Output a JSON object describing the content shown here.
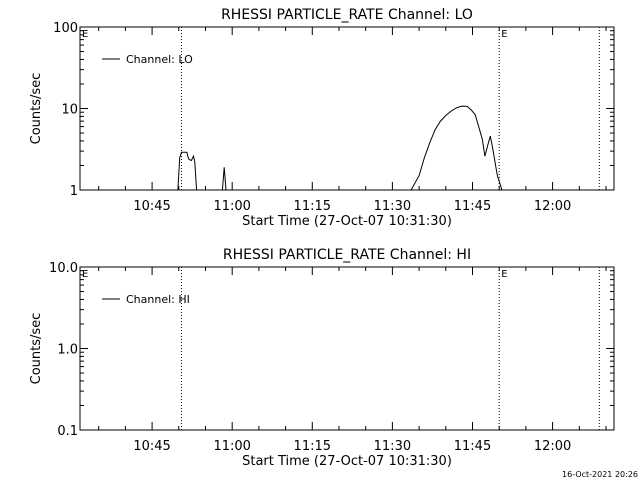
{
  "footer_timestamp": "16-Oct-2021 20:26",
  "chart_data": [
    {
      "type": "line",
      "title": "RHESSI PARTICLE_RATE Channel: LO",
      "xlabel": "Start Time (27-Oct-07 10:31:30)",
      "ylabel": "Counts/sec",
      "y_scale": "log",
      "ylim": [
        1,
        100
      ],
      "yticks": [
        "1",
        "10",
        "100"
      ],
      "xlim": [
        "10:31:30",
        "12:11:30"
      ],
      "xticks": [
        "10:45",
        "11:00",
        "11:15",
        "11:30",
        "11:45",
        "12:00"
      ],
      "event_lines": [
        "10:50:30",
        "11:50:00",
        "12:08:45"
      ],
      "event_markers": [
        {
          "text": "E",
          "at": "10:31:30"
        },
        {
          "text": "E",
          "at": "11:50:00"
        }
      ],
      "legend": {
        "position": "top-left",
        "entries": [
          "Channel: LO"
        ]
      },
      "series": [
        {
          "name": "Channel: LO",
          "points": [
            [
              "10:31:30",
              1.0
            ],
            [
              "10:49:50",
              1.0
            ],
            [
              "10:50:10",
              2.5
            ],
            [
              "10:50:30",
              2.9
            ],
            [
              "10:51:00",
              2.9
            ],
            [
              "10:51:30",
              2.9
            ],
            [
              "10:51:50",
              2.4
            ],
            [
              "10:52:20",
              2.3
            ],
            [
              "10:52:45",
              2.6
            ],
            [
              "10:53:00",
              2.2
            ],
            [
              "10:53:20",
              1.0
            ],
            [
              "10:58:10",
              1.0
            ],
            [
              "10:58:30",
              1.9
            ],
            [
              "10:58:50",
              1.0
            ],
            [
              "11:33:30",
              1.0
            ],
            [
              "11:35:00",
              1.5
            ],
            [
              "11:36:00",
              2.5
            ],
            [
              "11:37:00",
              3.8
            ],
            [
              "11:38:00",
              5.5
            ],
            [
              "11:39:00",
              7.0
            ],
            [
              "11:40:00",
              8.2
            ],
            [
              "11:41:00",
              9.3
            ],
            [
              "11:42:00",
              10.2
            ],
            [
              "11:43:00",
              10.7
            ],
            [
              "11:44:00",
              10.6
            ],
            [
              "11:44:45",
              9.6
            ],
            [
              "11:45:30",
              8.4
            ],
            [
              "11:46:10",
              6.0
            ],
            [
              "11:46:50",
              4.2
            ],
            [
              "11:47:20",
              2.6
            ],
            [
              "11:47:50",
              3.5
            ],
            [
              "11:48:20",
              4.6
            ],
            [
              "11:48:50",
              3.1
            ],
            [
              "11:49:20",
              2.0
            ],
            [
              "11:49:40",
              1.5
            ],
            [
              "11:50:30",
              1.0
            ],
            [
              "12:11:30",
              1.0
            ]
          ]
        }
      ]
    },
    {
      "type": "line",
      "title": "RHESSI PARTICLE_RATE Channel: HI",
      "xlabel": "Start Time (27-Oct-07 10:31:30)",
      "ylabel": "Counts/sec",
      "y_scale": "log",
      "ylim": [
        0.1,
        10
      ],
      "yticks": [
        "0.1",
        "1.0",
        "10.0"
      ],
      "xlim": [
        "10:31:30",
        "12:11:30"
      ],
      "xticks": [
        "10:45",
        "11:00",
        "11:15",
        "11:30",
        "11:45",
        "12:00"
      ],
      "event_lines": [
        "10:50:30",
        "11:50:00",
        "12:08:45"
      ],
      "event_markers": [
        {
          "text": "E",
          "at": "10:31:30"
        },
        {
          "text": "E",
          "at": "11:50:00"
        }
      ],
      "legend": {
        "position": "top-left",
        "entries": [
          "Channel: HI"
        ]
      },
      "series": [
        {
          "name": "Channel: HI",
          "points": []
        }
      ]
    }
  ]
}
